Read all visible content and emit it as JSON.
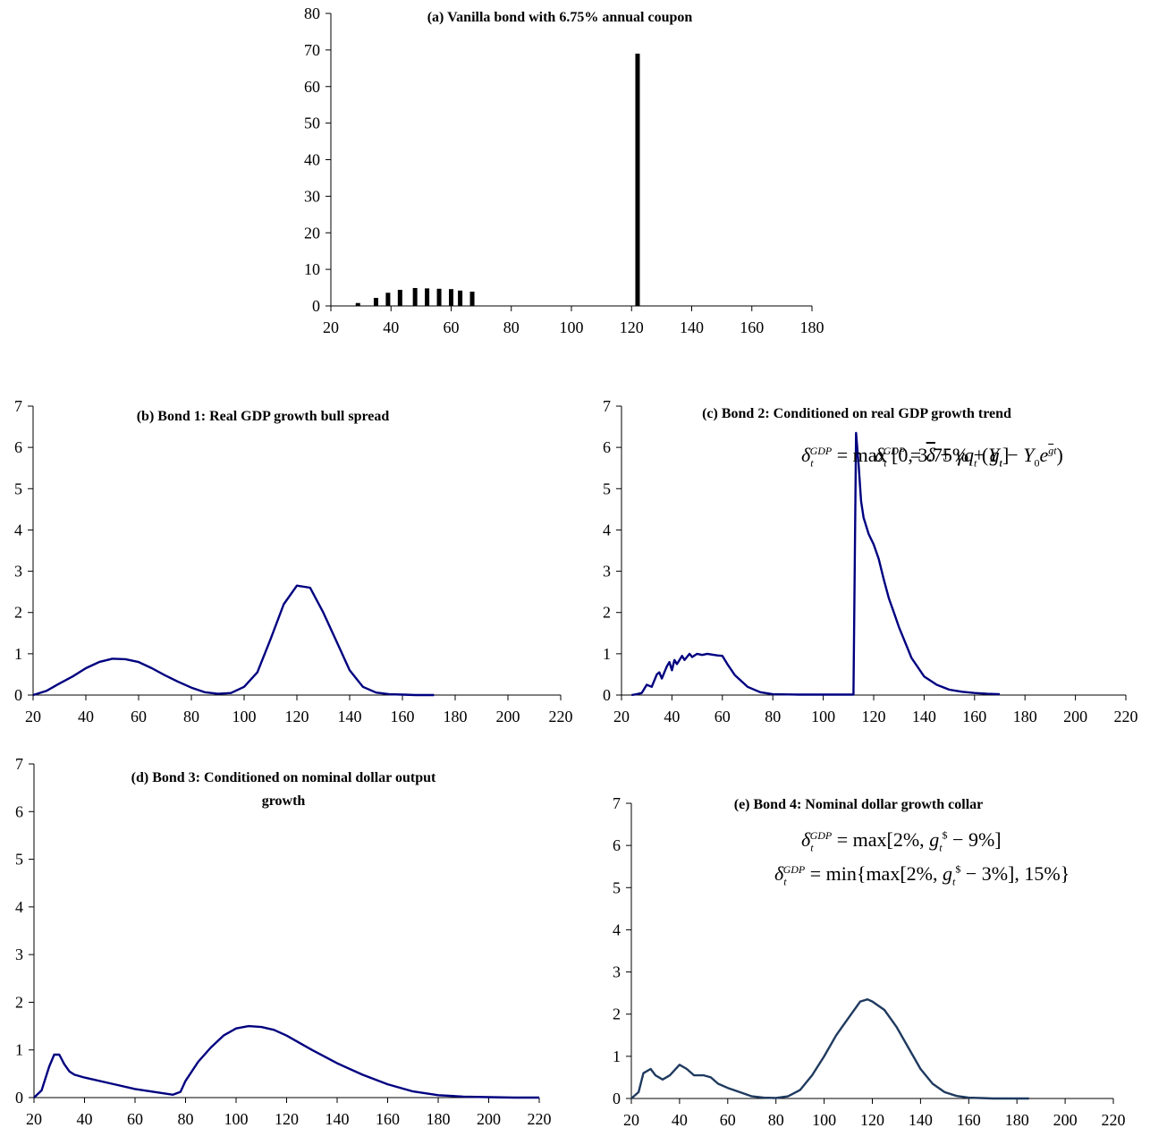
{
  "panels": [
    {
      "id": "a",
      "title": "(a) Vanilla bond with 6.75% annual coupon",
      "formula": "",
      "chart_data": {
        "type": "bar",
        "x": [
          29,
          35,
          39,
          43,
          48,
          52,
          56,
          60,
          63,
          67,
          122
        ],
        "values": [
          0.8,
          2.2,
          3.6,
          4.4,
          4.9,
          4.8,
          4.7,
          4.6,
          4.2,
          3.9,
          69
        ],
        "xlim": [
          20,
          180
        ],
        "ylim": [
          0,
          80
        ],
        "xticks": [
          20,
          40,
          60,
          80,
          100,
          120,
          140,
          160,
          180
        ],
        "yticks": [
          0,
          10,
          20,
          30,
          40,
          50,
          60,
          70,
          80
        ],
        "color": "#000000"
      }
    },
    {
      "id": "b",
      "title": "(b) Bond 1: Real GDP growth bull spread",
      "formula": "δ_t^GDP = max [0, 3.75% + g_t]",
      "chart_data": {
        "type": "line",
        "x": [
          20,
          25,
          30,
          35,
          40,
          45,
          50,
          55,
          60,
          65,
          70,
          75,
          80,
          85,
          90,
          95,
          100,
          105,
          110,
          115,
          120,
          125,
          130,
          135,
          140,
          145,
          150,
          155,
          160,
          165,
          172
        ],
        "y": [
          0,
          0.1,
          0.28,
          0.45,
          0.65,
          0.8,
          0.88,
          0.87,
          0.8,
          0.65,
          0.48,
          0.32,
          0.18,
          0.07,
          0.03,
          0.05,
          0.2,
          0.55,
          1.35,
          2.2,
          2.65,
          2.6,
          2.0,
          1.3,
          0.6,
          0.2,
          0.06,
          0.02,
          0.01,
          0,
          0
        ],
        "xlim": [
          20,
          220
        ],
        "ylim": [
          0,
          7
        ],
        "xticks": [
          20,
          40,
          60,
          80,
          100,
          120,
          140,
          160,
          180,
          200,
          220
        ],
        "yticks": [
          0,
          1,
          2,
          3,
          4,
          5,
          6,
          7
        ],
        "color": "#000080"
      }
    },
    {
      "id": "c",
      "title": "(c) Bond 2: Conditioned on real GDP growth trend",
      "formula": "δ_t^GDP = δ̄ + γ q_t (Y_t − Y_0 e^(ḡt))",
      "chart_data": {
        "type": "line",
        "x": [
          24,
          26,
          28,
          30,
          32,
          34,
          35,
          36,
          38,
          39,
          40,
          41,
          42,
          44,
          45,
          47,
          48,
          50,
          52,
          54,
          56,
          58,
          60,
          62,
          65,
          70,
          75,
          80,
          90,
          100,
          110,
          112,
          113,
          114,
          115,
          116,
          118,
          120,
          122,
          124,
          126,
          128,
          130,
          135,
          140,
          145,
          150,
          155,
          160,
          165,
          170
        ],
        "y": [
          0,
          0.02,
          0.05,
          0.25,
          0.2,
          0.5,
          0.55,
          0.4,
          0.7,
          0.8,
          0.6,
          0.85,
          0.75,
          0.95,
          0.85,
          1.0,
          0.92,
          1.0,
          0.97,
          1.0,
          0.98,
          0.96,
          0.95,
          0.75,
          0.48,
          0.2,
          0.07,
          0.02,
          0.01,
          0.01,
          0.01,
          0.01,
          6.35,
          5.6,
          4.7,
          4.3,
          3.9,
          3.65,
          3.3,
          2.8,
          2.35,
          2.0,
          1.65,
          0.9,
          0.45,
          0.25,
          0.13,
          0.08,
          0.05,
          0.03,
          0.02
        ],
        "xlim": [
          20,
          220
        ],
        "ylim": [
          0,
          7
        ],
        "xticks": [
          20,
          40,
          60,
          80,
          100,
          120,
          140,
          160,
          180,
          200,
          220
        ],
        "yticks": [
          0,
          1,
          2,
          3,
          4,
          5,
          6,
          7
        ],
        "color": "#000080"
      }
    },
    {
      "id": "d",
      "title": "(d) Bond 3: Conditioned on nominal dollar output growth",
      "title_lines": [
        "(d) Bond 3: Conditioned on nominal dollar output",
        "growth"
      ],
      "formula": "δ_t^GDP = max[2%, g_t^$ − 9%]",
      "chart_data": {
        "type": "line",
        "x": [
          20,
          23,
          26,
          28,
          30,
          32,
          34,
          36,
          40,
          50,
          60,
          70,
          75,
          78,
          80,
          85,
          90,
          95,
          100,
          105,
          110,
          115,
          120,
          130,
          140,
          150,
          160,
          170,
          180,
          190,
          200,
          210,
          220
        ],
        "y": [
          0,
          0.15,
          0.65,
          0.9,
          0.9,
          0.7,
          0.55,
          0.48,
          0.42,
          0.3,
          0.18,
          0.1,
          0.06,
          0.12,
          0.35,
          0.75,
          1.05,
          1.3,
          1.45,
          1.5,
          1.48,
          1.42,
          1.3,
          1.0,
          0.72,
          0.48,
          0.28,
          0.13,
          0.05,
          0.02,
          0.01,
          0,
          0
        ],
        "xlim": [
          20,
          220
        ],
        "ylim": [
          0,
          7
        ],
        "xticks": [
          20,
          40,
          60,
          80,
          100,
          120,
          140,
          160,
          180,
          200,
          220
        ],
        "yticks": [
          0,
          1,
          2,
          3,
          4,
          5,
          6,
          7
        ],
        "color": "#000080"
      }
    },
    {
      "id": "e",
      "title": "(e) Bond 4: Nominal dollar growth collar",
      "formula": "δ_t^GDP = min{max[2%, g_t^$ − 3%], 15%}",
      "chart_data": {
        "type": "line",
        "x": [
          20,
          23,
          25,
          28,
          30,
          33,
          36,
          40,
          43,
          46,
          50,
          53,
          56,
          60,
          65,
          70,
          75,
          80,
          85,
          90,
          95,
          100,
          105,
          110,
          115,
          118,
          120,
          125,
          130,
          135,
          140,
          145,
          150,
          155,
          160,
          165,
          170,
          175,
          180,
          185
        ],
        "y": [
          0,
          0.15,
          0.6,
          0.7,
          0.55,
          0.45,
          0.55,
          0.8,
          0.7,
          0.55,
          0.55,
          0.5,
          0.35,
          0.25,
          0.15,
          0.05,
          0.02,
          0.01,
          0.05,
          0.2,
          0.55,
          1.0,
          1.5,
          1.9,
          2.3,
          2.35,
          2.3,
          2.1,
          1.7,
          1.2,
          0.7,
          0.35,
          0.15,
          0.06,
          0.02,
          0.01,
          0,
          0,
          0,
          0
        ],
        "xlim": [
          20,
          220
        ],
        "ylim": [
          0,
          7
        ],
        "xticks": [
          20,
          40,
          60,
          80,
          100,
          120,
          140,
          160,
          180,
          200,
          220
        ],
        "yticks": [
          0,
          1,
          2,
          3,
          4,
          5,
          6,
          7
        ],
        "color": "#1f3a5f"
      }
    }
  ]
}
